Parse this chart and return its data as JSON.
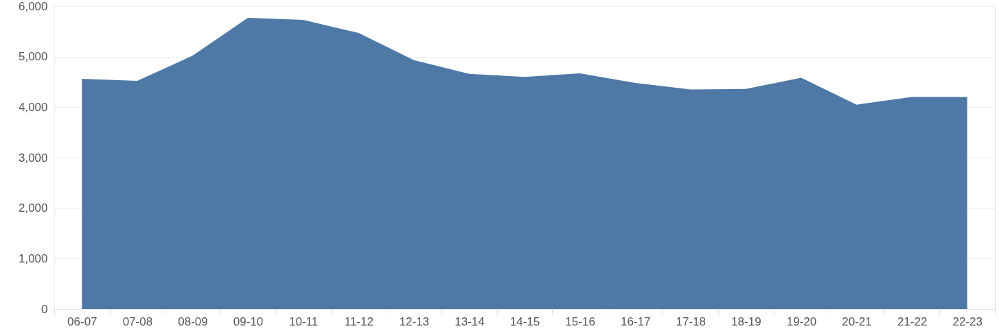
{
  "chart_data": {
    "type": "area",
    "categories": [
      "06-07",
      "07-08",
      "08-09",
      "09-10",
      "10-11",
      "11-12",
      "12-13",
      "13-14",
      "14-15",
      "15-16",
      "16-17",
      "17-18",
      "18-19",
      "19-20",
      "20-21",
      "21-22",
      "22-23"
    ],
    "values": [
      4560,
      4520,
      5020,
      5770,
      5730,
      5470,
      4930,
      4660,
      4600,
      4670,
      4480,
      4350,
      4360,
      4580,
      4050,
      4200,
      4200
    ],
    "color": "#4e79a7",
    "ylim": [
      0,
      6000
    ],
    "yticks": [
      0,
      {
        "value": 1000,
        "label": "1,000"
      },
      {
        "value": 2000,
        "label": "2,000"
      },
      {
        "value": 3000,
        "label": "3,000"
      },
      {
        "value": 4000,
        "label": "4,000"
      },
      {
        "value": 5000,
        "label": "5,000"
      },
      {
        "value": 6000,
        "label": "6,000"
      }
    ],
    "grid": "y"
  }
}
